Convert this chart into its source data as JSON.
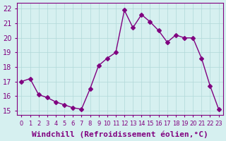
{
  "x": [
    0,
    1,
    2,
    3,
    4,
    5,
    6,
    7,
    8,
    9,
    10,
    11,
    12,
    13,
    14,
    15,
    16,
    17,
    18,
    19,
    20,
    21,
    22,
    23
  ],
  "y": [
    17.0,
    17.2,
    16.1,
    15.9,
    15.6,
    15.4,
    15.2,
    15.1,
    16.5,
    18.1,
    18.6,
    19.0,
    21.9,
    20.7,
    21.6,
    21.1,
    20.5,
    19.7,
    20.2,
    20.0,
    20.0,
    18.6,
    16.7,
    15.1
  ],
  "line_color": "#800080",
  "marker": "D",
  "marker_size": 3,
  "line_width": 1.0,
  "xlabel": "Windchill (Refroidissement éolien,°C)",
  "xlabel_fontsize": 8,
  "ylabel_ticks": [
    15,
    16,
    17,
    18,
    19,
    20,
    21,
    22
  ],
  "xtick_labels": [
    "0",
    "1",
    "2",
    "3",
    "4",
    "5",
    "6",
    "7",
    "8",
    "9",
    "10",
    "11",
    "12",
    "13",
    "14",
    "15",
    "16",
    "17",
    "18",
    "19",
    "20",
    "21",
    "22",
    "23"
  ],
  "ylim": [
    14.7,
    22.4
  ],
  "xlim": [
    -0.5,
    23.5
  ],
  "background_color": "#d6f0f0",
  "grid_color": "#b0d8d8",
  "tick_color": "#800080",
  "tick_fontsize": 7,
  "title": ""
}
